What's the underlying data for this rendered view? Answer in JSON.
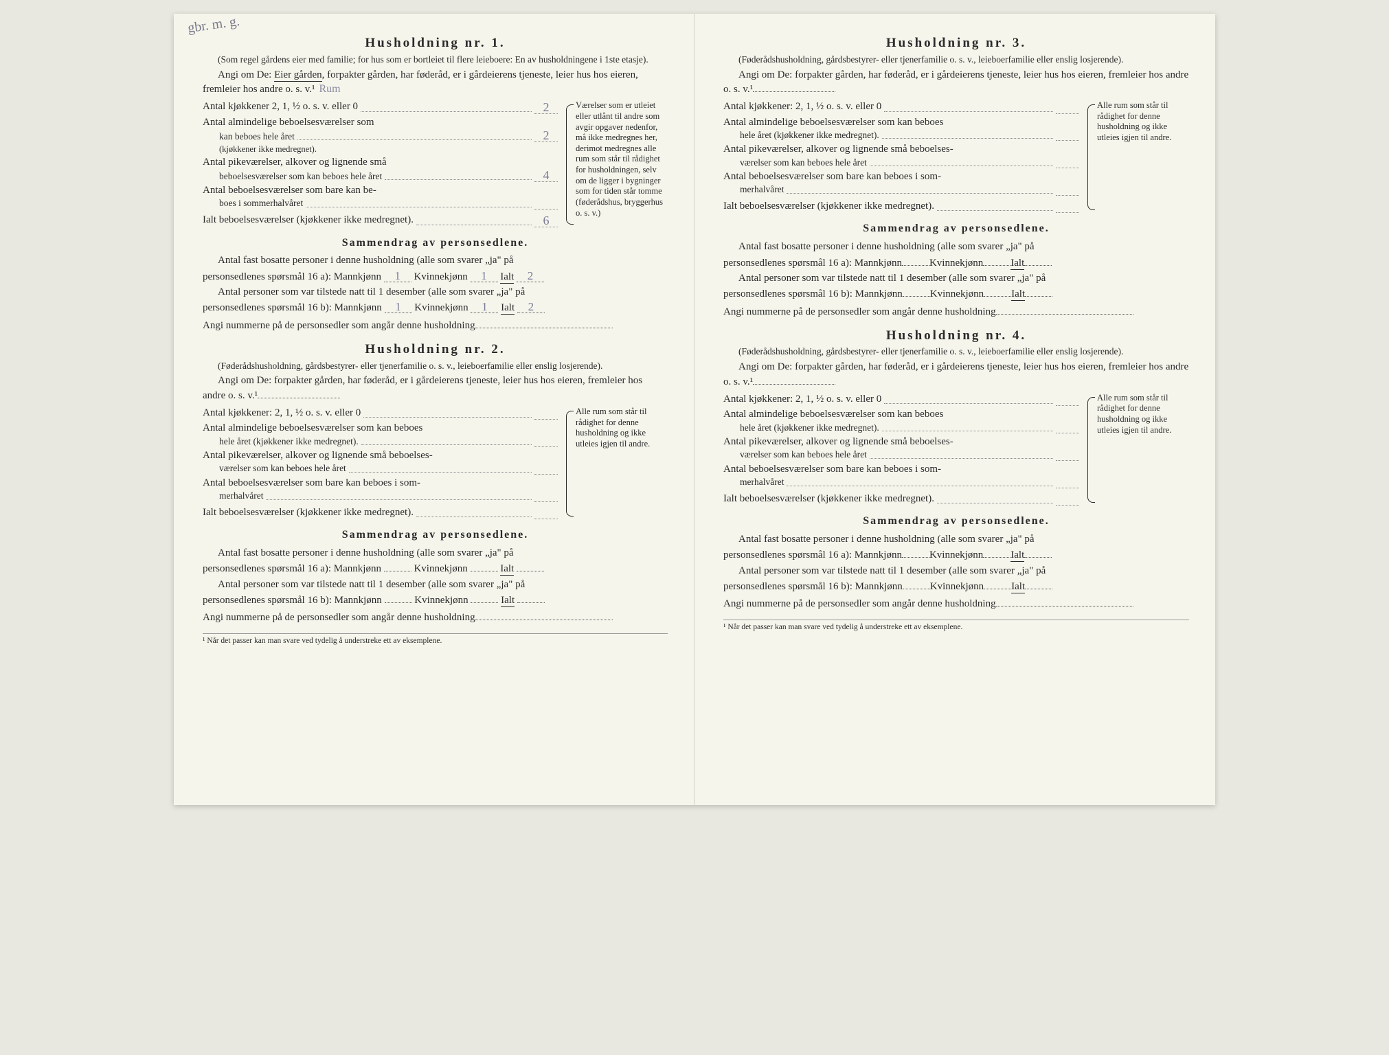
{
  "page_bg": "#f5f5ec",
  "text_color": "#2a2a2a",
  "handwritten_color": "#7a7a95",
  "corner_note": "gbr.\nm. g.",
  "footnote": "¹ Når det passer kan man svare ved tydelig å understreke ett av eksemplene.",
  "side_note_hh1": "Værelser som er utleiet eller utlånt til andre som avgir opgaver nedenfor, må ikke medregnes her, derimot medregnes alle rum som står til rådighet for husholdningen, selv om de ligger i bygninger som for tiden står tomme (føderådshus, bryggerhus o. s. v.)",
  "side_note_other": "Alle rum som står til rådighet for denne husholdning og ikke utleies igjen til andre.",
  "hh1": {
    "title": "Husholdning nr. 1.",
    "subnote": "(Som regel gårdens eier med familie; for hus som er bortleiet til flere leieboere: En av husholdningene i 1ste etasje).",
    "angi_pre": "Angi om De: ",
    "angi_underlined": "Eier gården",
    "angi_rest": ", forpakter gården, har føderåd, er i gårdeierens tjeneste, leier hus hos eieren, fremleier hos andre o. s. v.¹",
    "angi_hw": "Rum",
    "rows": {
      "kjokken_label": "Antal kjøkkener 2, 1, ½ o. s. v. eller 0",
      "kjokken_val": "2",
      "alm_label1": "Antal almindelige beboelsesværelser som",
      "alm_label2": "kan beboes hele året",
      "alm_note": "(kjøkkener ikke medregnet).",
      "alm_val": "2",
      "pike_label1": "Antal pikeværelser, alkover og lignende små",
      "pike_label2": "beboelsesværelser som kan beboes hele året",
      "pike_val": "4",
      "sommer_label1": "Antal beboelsesværelser som bare kan be-",
      "sommer_label2": "boes i sommerhalvåret",
      "sommer_val": "",
      "total_label": "Ialt beboelsesværelser (kjøkkener ikke medregnet).",
      "total_val": "6"
    },
    "summary": {
      "title": "Sammendrag av personsedlene.",
      "l1a": "Antal fast bosatte personer i denne husholdning (alle som svarer „ja\" på",
      "l1b_pre": "personsedlenes spørsmål 16 a): Mannkjønn",
      "l1b_m": "1",
      "l1b_mid": "Kvinnekjønn",
      "l1b_k": "1",
      "l1b_end": "Ialt",
      "l1b_t": "2",
      "l2a": "Antal personer som var tilstede natt til 1 desember (alle som svarer „ja\" på",
      "l2b_pre": "personsedlenes spørsmål 16 b): Mannkjønn",
      "l2b_m": "1",
      "l2b_k": "1",
      "l2b_t": "2",
      "angi_num": "Angi nummerne på de personsedler som angår denne husholdning"
    }
  },
  "hh234_common": {
    "subnote": "(Føderådshusholdning, gårdsbestyrer- eller tjenerfamilie o. s. v., leieboerfamilie eller enslig losjerende).",
    "angi": "Angi om De: forpakter gården, har føderåd, er i gårdeierens tjeneste, leier hus hos eieren, fremleier hos andre o. s. v.¹",
    "rows": {
      "kjokken_label": "Antal kjøkkener: 2, 1, ½ o. s. v. eller 0",
      "alm_label1": "Antal almindelige beboelsesværelser som kan beboes",
      "alm_label2": "hele året (kjøkkener ikke medregnet).",
      "pike_label1": "Antal pikeværelser, alkover og lignende små beboelses-",
      "pike_label2": "værelser som kan beboes hele året",
      "sommer_label1": "Antal beboelsesværelser som bare kan beboes i som-",
      "sommer_label2": "merhalvåret",
      "total_label": "Ialt beboelsesværelser (kjøkkener ikke medregnet)."
    },
    "summary": {
      "title": "Sammendrag av personsedlene.",
      "l1a": "Antal fast bosatte personer i denne husholdning (alle som svarer „ja\" på",
      "l1b_pre": "personsedlenes spørsmål 16 a): Mannkjønn",
      "l1b_mid": "Kvinnekjønn",
      "l1b_end": "Ialt",
      "l2a": "Antal personer som var tilstede natt til 1 desember (alle som svarer „ja\" på",
      "l2b_pre": "personsedlenes spørsmål 16 b): Mannkjønn",
      "angi_num": "Angi nummerne på de personsedler som angår denne husholdning"
    }
  },
  "hh2_title": "Husholdning nr. 2.",
  "hh3_title": "Husholdning nr. 3.",
  "hh4_title": "Husholdning nr. 4."
}
